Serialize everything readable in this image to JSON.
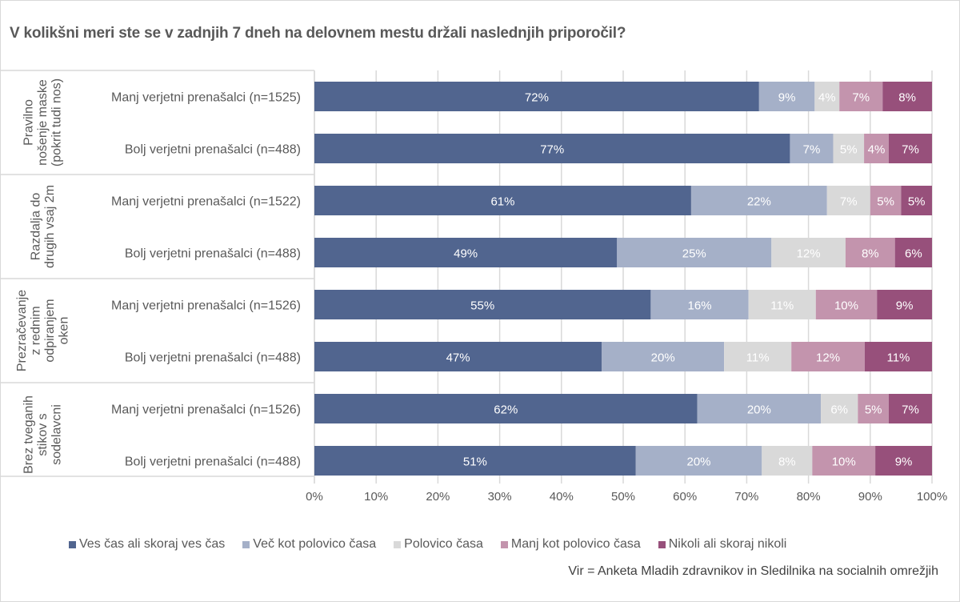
{
  "chart_data": {
    "type": "bar",
    "orientation": "horizontal",
    "stacked": "percent",
    "title": "V kolikšni meri ste se v zadnjih 7 dneh na delovnem mestu držali naslednjih priporočil?",
    "xlabel": "",
    "ylabel": "",
    "xlim": [
      0,
      100
    ],
    "x_ticks": [
      "0%",
      "10%",
      "20%",
      "30%",
      "40%",
      "50%",
      "60%",
      "70%",
      "80%",
      "90%",
      "100%"
    ],
    "grid": true,
    "legend_position": "bottom",
    "groups": [
      {
        "label": "Pravilno nošenje maske (pokrit tudi nos)",
        "lines": [
          "Pravilno",
          "nošenje maske",
          "(pokrit tudi nos)"
        ]
      },
      {
        "label": "Razdalja do drugih vsaj 2m",
        "lines": [
          "Razdalja do",
          "drugih vsaj 2m"
        ]
      },
      {
        "label": "Prezračevanje z rednim odpiranjem oken",
        "lines": [
          "Prezračevanje",
          "z rednim",
          "odpiranjem",
          "oken"
        ]
      },
      {
        "label": "Brez tveganih stikov s sodelavcni",
        "lines": [
          "Brez tveganih",
          "stikov s",
          "sodelavcni"
        ]
      }
    ],
    "categories": [
      "Manj verjetni prenašalci (n=1525)",
      "Bolj verjetni prenašalci (n=488)",
      "Manj verjetni prenašalci (n=1522)",
      "Bolj verjetni prenašalci (n=488)",
      "Manj verjetni prenašalci (n=1526)",
      "Bolj verjetni prenašalci (n=488)",
      "Manj verjetni prenašalci (n=1526)",
      "Bolj verjetni prenašalci (n=488)"
    ],
    "series": [
      {
        "name": "Ves čas ali skoraj ves čas",
        "color": "#51658f",
        "values": [
          72,
          77,
          61,
          49,
          55,
          47,
          62,
          51
        ]
      },
      {
        "name": "Več kot polovico časa",
        "color": "#a5b0c8",
        "values": [
          9,
          7,
          22,
          25,
          16,
          20,
          20,
          20
        ]
      },
      {
        "name": "Polovico časa",
        "color": "#d9d9d9",
        "values": [
          4,
          5,
          7,
          12,
          11,
          11,
          6,
          8
        ]
      },
      {
        "name": "Manj kot polovico časa",
        "color": "#c394ad",
        "values": [
          7,
          4,
          5,
          8,
          10,
          12,
          5,
          10
        ]
      },
      {
        "name": "Nikoli ali skoraj nikoli",
        "color": "#97507b",
        "values": [
          8,
          7,
          5,
          6,
          9,
          11,
          7,
          9
        ]
      }
    ],
    "value_suffix": "%"
  },
  "source": "Vir = Anketa Mladih zdravnikov in Sledilnika na socialnih omrežjih"
}
